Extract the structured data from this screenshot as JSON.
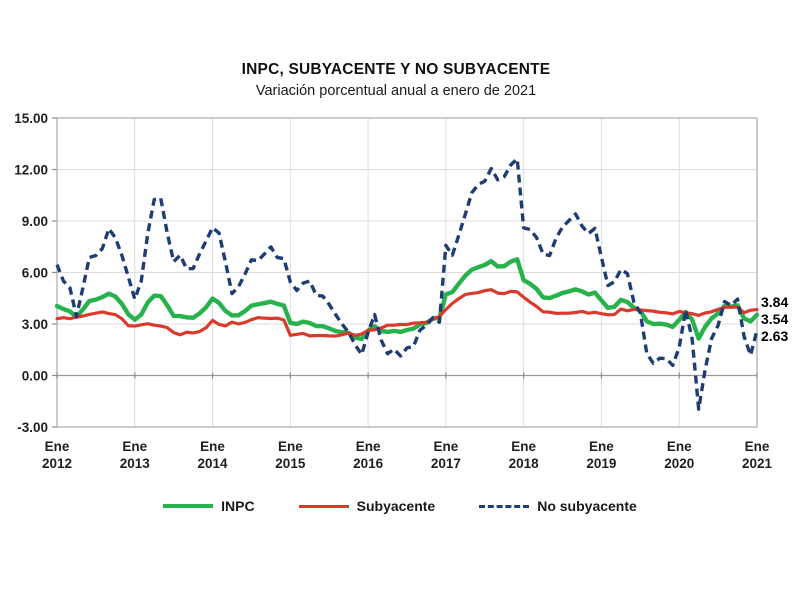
{
  "chart_data": {
    "type": "line",
    "title": "INPC, SUBYACENTE Y NO SUBYACENTE",
    "subtitle": "Variación porcentual anual a enero de 2021",
    "x_unit": "monthly",
    "x_range": [
      "Ene 2012",
      "Ene 2021"
    ],
    "x_tick_labels": [
      "Ene 2012",
      "Ene 2013",
      "Ene 2014",
      "Ene 2015",
      "Ene 2016",
      "Ene 2017",
      "Ene 2018",
      "Ene 2019",
      "Ene 2020",
      "Ene 2021"
    ],
    "y_tick_labels": [
      "15.00",
      "12.00",
      "9.00",
      "6.00",
      "3.00",
      "0.00",
      "-3.00"
    ],
    "y_tick_values": [
      15,
      12,
      9,
      6,
      3,
      0,
      -3
    ],
    "ylim": [
      -3,
      15
    ],
    "grid": true,
    "legend_position": "bottom",
    "series": [
      {
        "name": "INPC",
        "color": "#27B24B",
        "line_style": "solid",
        "values": [
          4.05,
          3.87,
          3.73,
          3.41,
          3.85,
          4.34,
          4.42,
          4.57,
          4.77,
          4.6,
          4.18,
          3.57,
          3.25,
          3.55,
          4.25,
          4.65,
          4.63,
          4.09,
          3.47,
          3.46,
          3.39,
          3.36,
          3.62,
          3.97,
          4.48,
          4.23,
          3.76,
          3.5,
          3.51,
          3.75,
          4.07,
          4.15,
          4.22,
          4.3,
          4.17,
          4.08,
          3.07,
          3.0,
          3.14,
          3.06,
          2.88,
          2.87,
          2.74,
          2.59,
          2.52,
          2.48,
          2.21,
          2.13,
          2.61,
          2.87,
          2.6,
          2.54,
          2.6,
          2.54,
          2.65,
          2.73,
          2.97,
          3.06,
          3.31,
          3.36,
          4.72,
          4.86,
          5.35,
          5.82,
          6.16,
          6.31,
          6.44,
          6.66,
          6.35,
          6.37,
          6.63,
          6.77,
          5.55,
          5.34,
          5.04,
          4.55,
          4.51,
          4.65,
          4.81,
          4.9,
          5.02,
          4.9,
          4.72,
          4.83,
          4.37,
          3.94,
          4.0,
          4.41,
          4.28,
          3.95,
          3.78,
          3.16,
          3.0,
          3.02,
          2.97,
          2.83,
          3.24,
          3.7,
          3.25,
          2.15,
          2.84,
          3.33,
          3.62,
          4.05,
          4.01,
          4.09,
          3.33,
          3.15,
          3.54
        ]
      },
      {
        "name": "Subyacente",
        "color": "#D93A2B",
        "line_style": "solid",
        "values": [
          3.31,
          3.37,
          3.31,
          3.4,
          3.46,
          3.56,
          3.63,
          3.7,
          3.61,
          3.55,
          3.31,
          2.9,
          2.88,
          2.95,
          3.02,
          2.93,
          2.88,
          2.79,
          2.5,
          2.37,
          2.52,
          2.48,
          2.56,
          2.78,
          3.21,
          2.98,
          2.89,
          3.11,
          3.0,
          3.09,
          3.25,
          3.37,
          3.34,
          3.32,
          3.34,
          3.24,
          2.34,
          2.4,
          2.45,
          2.31,
          2.33,
          2.33,
          2.31,
          2.3,
          2.38,
          2.47,
          2.34,
          2.41,
          2.64,
          2.66,
          2.76,
          2.93,
          2.93,
          2.97,
          2.97,
          3.05,
          3.07,
          3.1,
          3.29,
          3.44,
          3.84,
          4.2,
          4.48,
          4.72,
          4.78,
          4.83,
          4.94,
          5.0,
          4.8,
          4.77,
          4.9,
          4.87,
          4.56,
          4.27,
          4.02,
          3.71,
          3.69,
          3.62,
          3.63,
          3.63,
          3.67,
          3.73,
          3.63,
          3.68,
          3.6,
          3.54,
          3.55,
          3.87,
          3.77,
          3.85,
          3.82,
          3.78,
          3.75,
          3.68,
          3.65,
          3.59,
          3.73,
          3.66,
          3.6,
          3.5,
          3.64,
          3.71,
          3.85,
          3.97,
          3.99,
          3.98,
          3.66,
          3.8,
          3.84
        ]
      },
      {
        "name": "No subyacente",
        "color": "#1F3D73",
        "line_style": "dashed",
        "values": [
          6.46,
          5.5,
          5.1,
          3.44,
          5.12,
          6.88,
          6.99,
          7.4,
          8.55,
          8.02,
          7.01,
          5.75,
          4.45,
          5.5,
          8.26,
          10.25,
          10.33,
          8.32,
          6.63,
          7.01,
          6.22,
          6.23,
          7.08,
          7.84,
          8.61,
          8.3,
          6.59,
          4.77,
          5.17,
          5.9,
          6.74,
          6.69,
          7.08,
          7.49,
          6.87,
          6.81,
          5.45,
          4.95,
          5.39,
          5.5,
          4.67,
          4.63,
          4.14,
          3.54,
          2.98,
          2.51,
          1.79,
          1.22,
          2.51,
          3.55,
          2.08,
          1.27,
          1.53,
          1.14,
          1.61,
          1.69,
          2.64,
          2.93,
          3.37,
          3.1,
          7.58,
          7.01,
          8.18,
          9.4,
          10.65,
          11.13,
          11.32,
          12.06,
          11.4,
          11.58,
          12.26,
          12.62,
          8.6,
          8.5,
          8.03,
          7.07,
          6.99,
          8.0,
          8.65,
          9.03,
          9.41,
          8.71,
          8.27,
          8.57,
          6.88,
          5.24,
          5.46,
          6.17,
          5.94,
          4.28,
          3.65,
          1.28,
          0.71,
          1.01,
          0.98,
          0.59,
          1.65,
          3.83,
          2.11,
          -1.96,
          0.35,
          2.16,
          2.92,
          4.31,
          4.08,
          4.45,
          2.29,
          1.18,
          2.63
        ]
      }
    ],
    "end_labels": [
      {
        "series": "Subyacente",
        "value": "3.84"
      },
      {
        "series": "INPC",
        "value": "3.54"
      },
      {
        "series": "No subyacente",
        "value": "2.63"
      }
    ],
    "colors": {
      "gridline": "#DCDCDC",
      "axis": "#8C8C8C",
      "frame": "#ABABAB",
      "tick_text": "#1F1F1F"
    }
  }
}
